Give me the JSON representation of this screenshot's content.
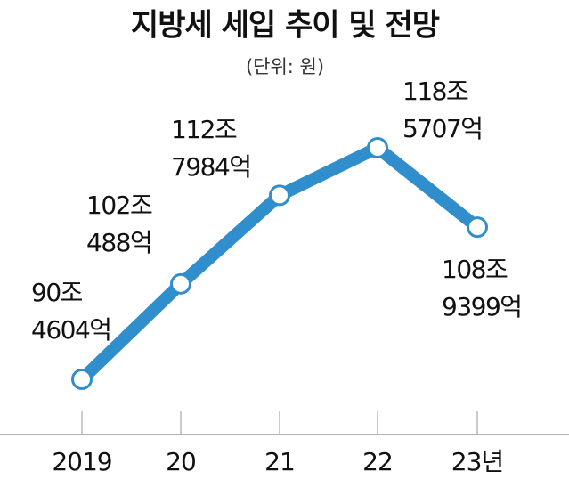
{
  "chart_data": {
    "type": "line",
    "title": "지방세 세입 추이 및 전망",
    "subtitle": "(단위: 원)",
    "categories": [
      "2019",
      "20",
      "21",
      "22",
      "23년"
    ],
    "values": [
      904604,
      1020488,
      1127984,
      1185707,
      1089399
    ],
    "value_labels": [
      [
        "90조",
        "4604억"
      ],
      [
        "102조",
        "488억"
      ],
      [
        "112조",
        "7984억"
      ],
      [
        "118조",
        "5707억"
      ],
      [
        "108조",
        "9399억"
      ]
    ],
    "color": "#2f8ecb"
  }
}
